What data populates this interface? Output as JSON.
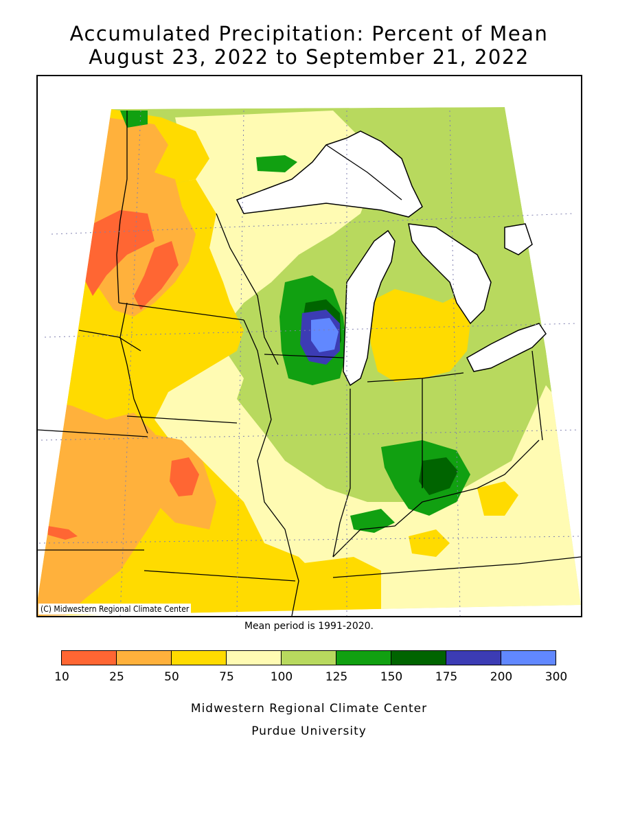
{
  "title": {
    "line1": "Accumulated Precipitation: Percent of Mean",
    "line2": "August 23, 2022 to September 21, 2022"
  },
  "map": {
    "credit": "(C) Midwestern Regional Climate Center",
    "note": "Mean period is 1991-2020."
  },
  "legend": {
    "ticks": [
      "10",
      "25",
      "50",
      "75",
      "100",
      "125",
      "150",
      "175",
      "200",
      "300"
    ],
    "colors": [
      "#ff6633",
      "#ffb13c",
      "#ffdb00",
      "#fffbb3",
      "#b8d95e",
      "#11a011",
      "#006400",
      "#3c3cb4",
      "#6188ff"
    ]
  },
  "footer": {
    "line1": "Midwestern Regional Climate Center",
    "line2": "Purdue University"
  }
}
